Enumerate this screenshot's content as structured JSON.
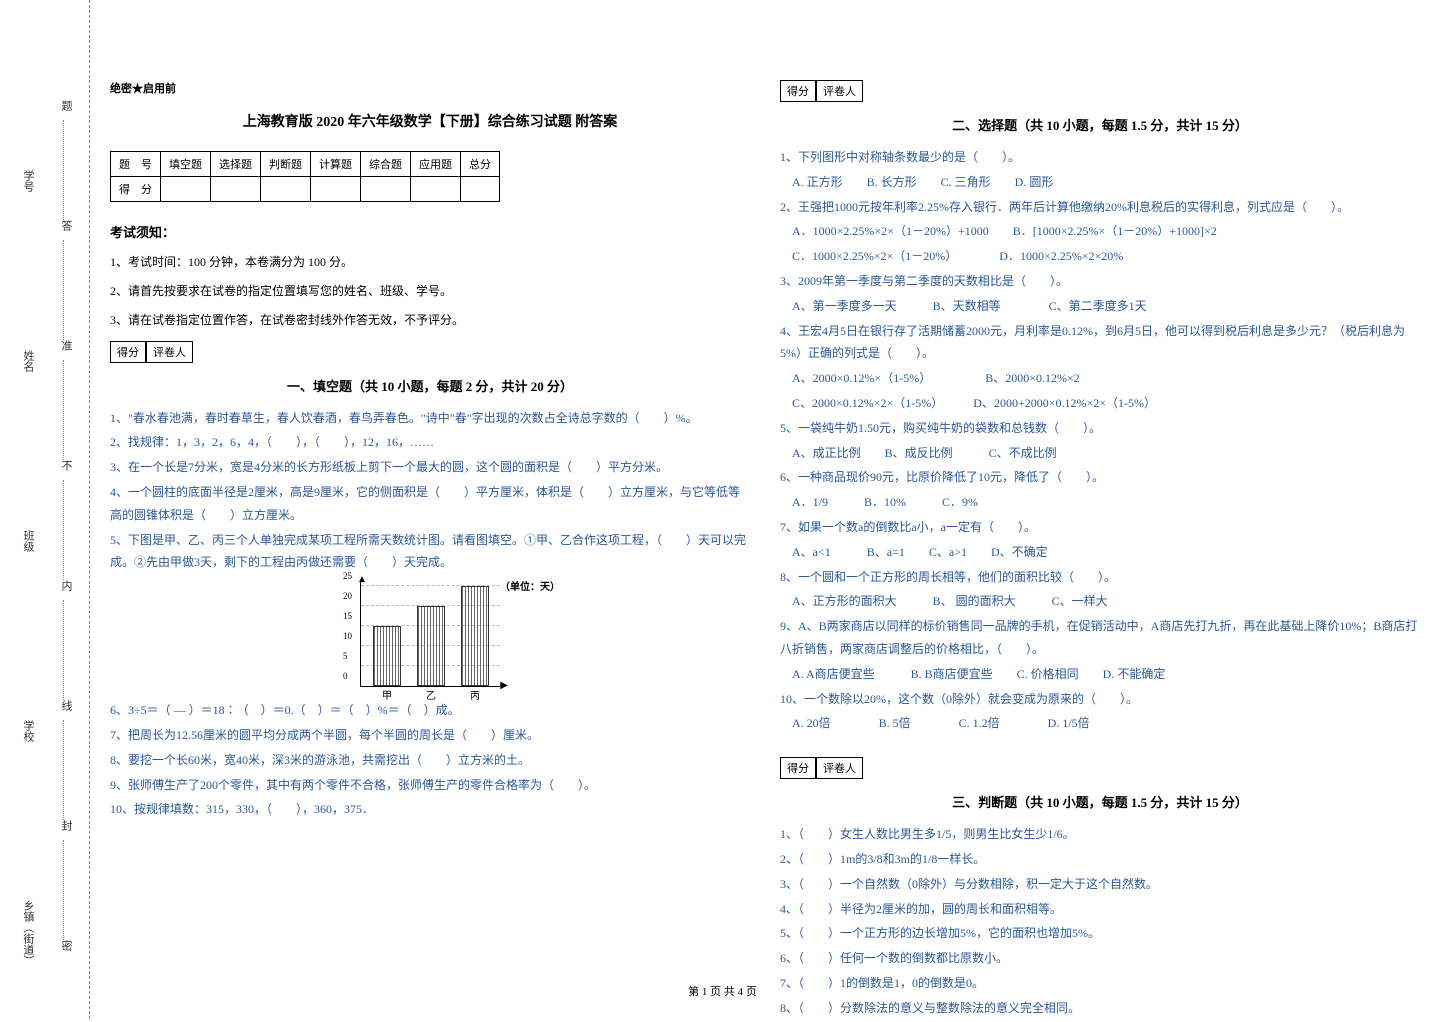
{
  "binding": {
    "labels": [
      "乡镇（街道）",
      "学校",
      "班级",
      "姓名",
      "学号"
    ],
    "seal_chars": [
      "密",
      "封",
      "线",
      "内",
      "不",
      "准",
      "答",
      "题"
    ]
  },
  "header": {
    "secret": "绝密★启用前",
    "title": "上海教育版 2020 年六年级数学【下册】综合练习试题 附答案"
  },
  "score_table": {
    "headers": [
      "题　号",
      "填空题",
      "选择题",
      "判断题",
      "计算题",
      "综合题",
      "应用题",
      "总分"
    ],
    "row_label": "得　分"
  },
  "notice": {
    "title": "考试须知：",
    "items": [
      "1、考试时间：100 分钟，本卷满分为 100 分。",
      "2、请首先按要求在试卷的指定位置填写您的姓名、班级、学号。",
      "3、请在试卷指定位置作答，在试卷密封线外作答无效，不予评分。"
    ]
  },
  "score_box": {
    "label1": "得分",
    "label2": "评卷人"
  },
  "section1": {
    "title": "一、填空题（共 10 小题，每题 2 分，共计 20 分）",
    "q1": "1、\"春水春池满，春时春草生，春人饮春酒，春鸟弄春色。\"诗中\"春\"字出现的次数占全诗总字数的（　　）%。",
    "q2": "2、找规律：1，3，2，6，4，（　　），（　　），12，16，……",
    "q3": "3、在一个长是7分米，宽是4分米的长方形纸板上剪下一个最大的圆，这个圆的面积是（　　）平方分米。",
    "q4": "4、一个圆柱的底面半径是2厘米，高是9厘米，它的侧面积是（　　）平方厘米，体积是（　　）立方厘米，与它等低等高的圆锥体积是（　　）立方厘米。",
    "q5": "5、下图是甲、乙、丙三个人单独完成某项工程所需天数统计图。请看图填空。①甲、乙合作这项工程，（　　）天可以完成。②先由甲做3天，剩下的工程由丙做还需要（　　）天完成。",
    "q6": "6、3÷5＝（ — ）＝18∶（　）＝0.（　）＝（　）%＝（　）成。",
    "q7": "7、把周长为12.56厘米的圆平均分成两个半圆，每个半圆的周长是（　　）厘米。",
    "q8": "8、要挖一个长60米，宽40米，深3米的游泳池，共需挖出（　　）立方米的土。",
    "q9": "9、张师傅生产了200个零件，其中有两个零件不合格，张师傅生产的零件合格率为（　　）。",
    "q10": "10、按规律填数：315，330，（　　），360，375．"
  },
  "chart": {
    "title": "（单位：天）",
    "ylim": [
      0,
      25
    ],
    "ytick_step": 5,
    "categories": [
      "甲",
      "乙",
      "丙"
    ],
    "values": [
      15,
      20,
      25
    ],
    "bar_color_pattern": "hatched",
    "gridline_color": "#bbbbbb"
  },
  "section2": {
    "title": "二、选择题（共 10 小题，每题 1.5 分，共计 15 分）",
    "q1": "1、下列图形中对称轴条数最少的是（　　）。",
    "q1opts": "　A. 正方形　　B. 长方形　　C. 三角形　　D. 圆形",
    "q2": "2、王强把1000元按年利率2.25%存入银行．两年后计算他缴纳20%利息税后的实得利息，列式应是（　　）。",
    "q2a": "　A．1000×2.25%×2×（1－20%）+1000　　B．[1000×2.25%×（1－20%）+1000]×2",
    "q2b": "　C．1000×2.25%×2×（1－20%）　　　　D．1000×2.25%×2×20%",
    "q3": "3、2009年第一季度与第二季度的天数相比是（　　）。",
    "q3opts": "　A、第一季度多一天　　　B、天数相等　　　　C、第二季度多1天",
    "q4": "4、王宏4月5日在银行存了活期储蓄2000元，月利率是0.12%，到6月5日，他可以得到税后利息是多少元？（税后利息为5%）正确的列式是（　　）。",
    "q4a": "　A、2000×0.12%×（1-5%）　　　　　B、2000×0.12%×2",
    "q4b": "　C、2000×0.12%×2×（1-5%）　　　D、2000+2000×0.12%×2×（1-5%）",
    "q5": "5、一袋纯牛奶1.50元，购买纯牛奶的袋数和总钱数（　　）。",
    "q5opts": "　A、成正比例　　B、成反比例　　　C、不成比例",
    "q6": "6、一种商品现价90元，比原价降低了10元，降低了（　　）。",
    "q6opts": "　A．1/9　　　B．10%　　　C．9%",
    "q7": "7、如果一个数a的倒数比a小，a一定有（　　）。",
    "q7opts": "　A、a<1　　　B、a=1　　C、a>1　　D、不确定",
    "q8": "8、一个圆和一个正方形的周长相等，他们的面积比较（　　）。",
    "q8opts": "　A、正方形的面积大　　　B、 圆的面积大　　　C、一样大",
    "q9": "9、A、B两家商店以同样的标价销售同一品牌的手机，在促销活动中，A商店先打九折，再在此基础上降价10%；B商店打八折销售，两家商店调整后的价格相比，（　　）。",
    "q9opts": "　A. A商店便宜些　　　B. B商店便宜些　　C. 价格相同　　D. 不能确定",
    "q10": "10、一个数除以20%，这个数（0除外）就会变成为原来的（　　）。",
    "q10opts": "　A. 20倍　　　　B. 5倍　　　　C. 1.2倍　　　　D. 1/5倍"
  },
  "section3": {
    "title": "三、判断题（共 10 小题，每题 1.5 分，共计 15 分）",
    "q1": "1、（　　）女生人数比男生多1/5，则男生比女生少1/6。",
    "q2": "2、（　　）1m的3/8和3m的1/8一样长。",
    "q3": "3、（　　）一个自然数（0除外）与分数相除，积一定大于这个自然数。",
    "q4": "4、（　　）半径为2厘米的加，圆的周长和面积相等。",
    "q5": "5、（　　）一个正方形的边长增加5%，它的面积也增加5%。",
    "q6": "6、（　　）任何一个数的倒数都比原数小。",
    "q7": "7、（　　）1的倒数是1，0的倒数是0。",
    "q8": "8、（　　）分数除法的意义与整数除法的意义完全相同。"
  },
  "footer": "第 1 页 共 4 页"
}
